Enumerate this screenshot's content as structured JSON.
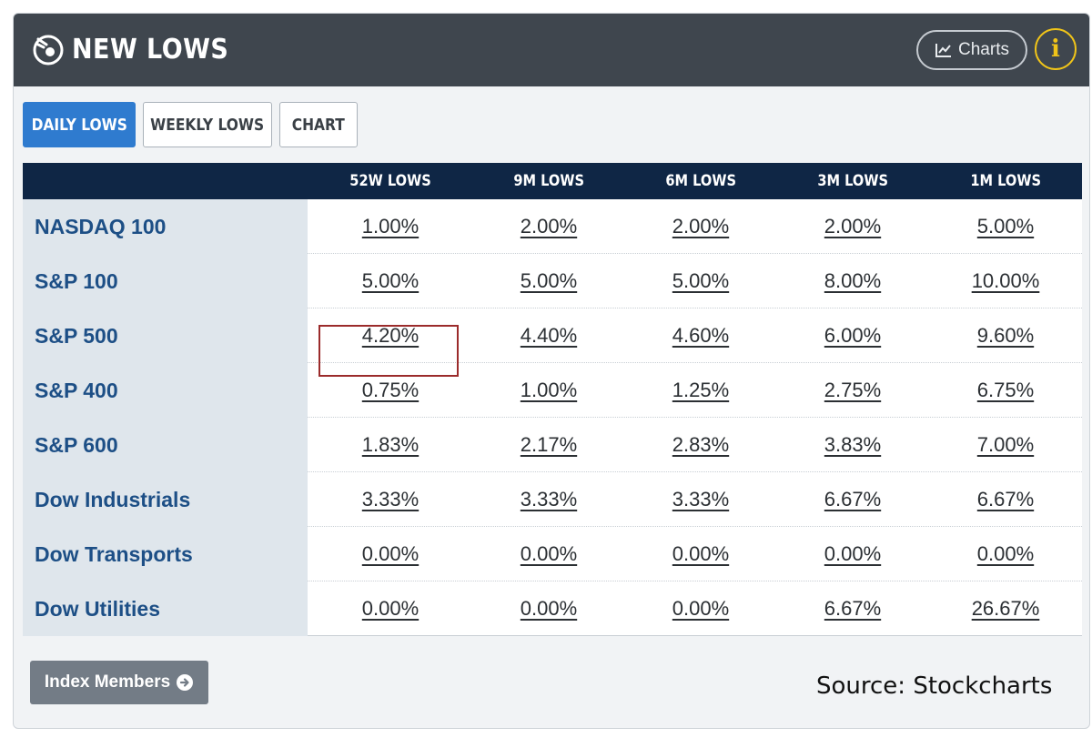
{
  "header": {
    "title": "NEW LOWS",
    "charts_label": "Charts",
    "info_label": "i"
  },
  "tabs": [
    {
      "label": "DAILY LOWS",
      "active": true
    },
    {
      "label": "WEEKLY LOWS",
      "active": false
    },
    {
      "label": "CHART",
      "active": false
    }
  ],
  "table": {
    "columns": [
      "52W LOWS",
      "9M LOWS",
      "6M LOWS",
      "3M LOWS",
      "1M LOWS"
    ],
    "rows": [
      {
        "label": "NASDAQ 100",
        "values": [
          "1.00%",
          "2.00%",
          "2.00%",
          "2.00%",
          "5.00%"
        ]
      },
      {
        "label": "S&P 100",
        "values": [
          "5.00%",
          "5.00%",
          "5.00%",
          "8.00%",
          "10.00%"
        ]
      },
      {
        "label": "S&P 500",
        "values": [
          "4.20%",
          "4.40%",
          "4.60%",
          "6.00%",
          "9.60%"
        ]
      },
      {
        "label": "S&P 400",
        "values": [
          "0.75%",
          "1.00%",
          "1.25%",
          "2.75%",
          "6.75%"
        ]
      },
      {
        "label": "S&P 600",
        "values": [
          "1.83%",
          "2.17%",
          "2.83%",
          "3.83%",
          "7.00%"
        ]
      },
      {
        "label": "Dow Industrials",
        "values": [
          "3.33%",
          "3.33%",
          "3.33%",
          "6.67%",
          "6.67%"
        ]
      },
      {
        "label": "Dow Transports",
        "values": [
          "0.00%",
          "0.00%",
          "0.00%",
          "0.00%",
          "0.00%"
        ]
      },
      {
        "label": "Dow Utilities",
        "values": [
          "0.00%",
          "0.00%",
          "0.00%",
          "6.67%",
          "26.67%"
        ]
      }
    ]
  },
  "footer": {
    "index_members_label": "Index Members",
    "source": "Source: Stockcharts"
  },
  "colors": {
    "header_bg": "#3f464e",
    "table_header_bg": "#0f2645",
    "active_tab": "#2f7bcf",
    "row_label_text": "#1d4f86",
    "highlight_border": "#9b2b2b",
    "info_accent": "#f0c419"
  }
}
